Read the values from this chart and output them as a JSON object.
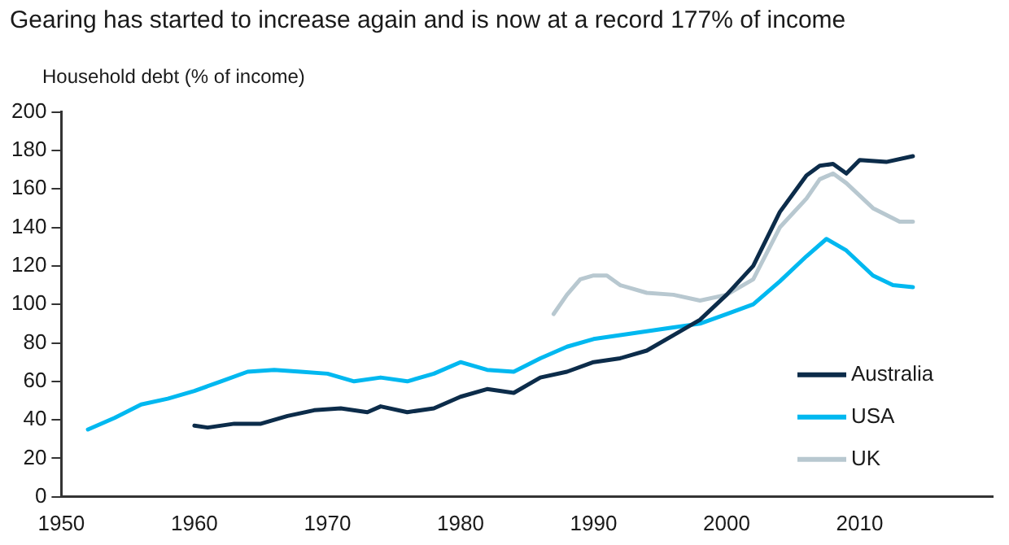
{
  "chart_data": {
    "type": "line",
    "title": "Gearing has started to increase again and is now at a record 177% of income",
    "ylabel": "Household debt (% of income)",
    "xlim": [
      1950,
      2020
    ],
    "xticks": [
      1950,
      1960,
      1970,
      1980,
      1990,
      2000,
      2010
    ],
    "ylim": [
      0,
      200
    ],
    "yticks": [
      0,
      20,
      40,
      60,
      80,
      100,
      120,
      140,
      160,
      180,
      200
    ],
    "grid": false,
    "legend": "bottom right",
    "marker": "none",
    "line_style": "solid",
    "series": [
      {
        "name": "Australia",
        "color": "#0c2c4a",
        "x": [
          1960,
          1961,
          1963,
          1965,
          1967,
          1969,
          1971,
          1973,
          1974,
          1976,
          1978,
          1980,
          1982,
          1984,
          1986,
          1988,
          1990,
          1992,
          1994,
          1996,
          1998,
          2000,
          2002,
          2004,
          2006,
          2007,
          2008,
          2009,
          2010,
          2012,
          2014
        ],
        "values": [
          37,
          36,
          38,
          38,
          42,
          45,
          46,
          44,
          47,
          44,
          46,
          52,
          56,
          54,
          62,
          65,
          70,
          72,
          76,
          84,
          92,
          105,
          120,
          148,
          167,
          172,
          173,
          168,
          175,
          174,
          177
        ]
      },
      {
        "name": "USA",
        "color": "#00b8f0",
        "x": [
          1952,
          1954,
          1956,
          1958,
          1960,
          1962,
          1964,
          1966,
          1968,
          1970,
          1972,
          1974,
          1976,
          1978,
          1980,
          1982,
          1984,
          1986,
          1988,
          1990,
          1992,
          1994,
          1996,
          1998,
          2000,
          2002,
          2004,
          2006,
          2007.5,
          2009,
          2011,
          2012.5,
          2014
        ],
        "values": [
          35,
          41,
          48,
          51,
          55,
          60,
          65,
          66,
          65,
          64,
          60,
          62,
          60,
          64,
          70,
          66,
          65,
          72,
          78,
          82,
          84,
          86,
          88,
          90,
          95,
          100,
          112,
          125,
          134,
          128,
          115,
          110,
          109
        ]
      },
      {
        "name": "UK",
        "color": "#b8c8d0",
        "x": [
          1987,
          1988,
          1989,
          1990,
          1991,
          1992,
          1994,
          1996,
          1998,
          2000,
          2002,
          2004,
          2006,
          2007,
          2008,
          2009,
          2011,
          2013,
          2014
        ],
        "values": [
          95,
          105,
          113,
          115,
          115,
          110,
          106,
          105,
          102,
          105,
          113,
          140,
          155,
          165,
          168,
          163,
          150,
          143,
          143
        ]
      }
    ]
  }
}
